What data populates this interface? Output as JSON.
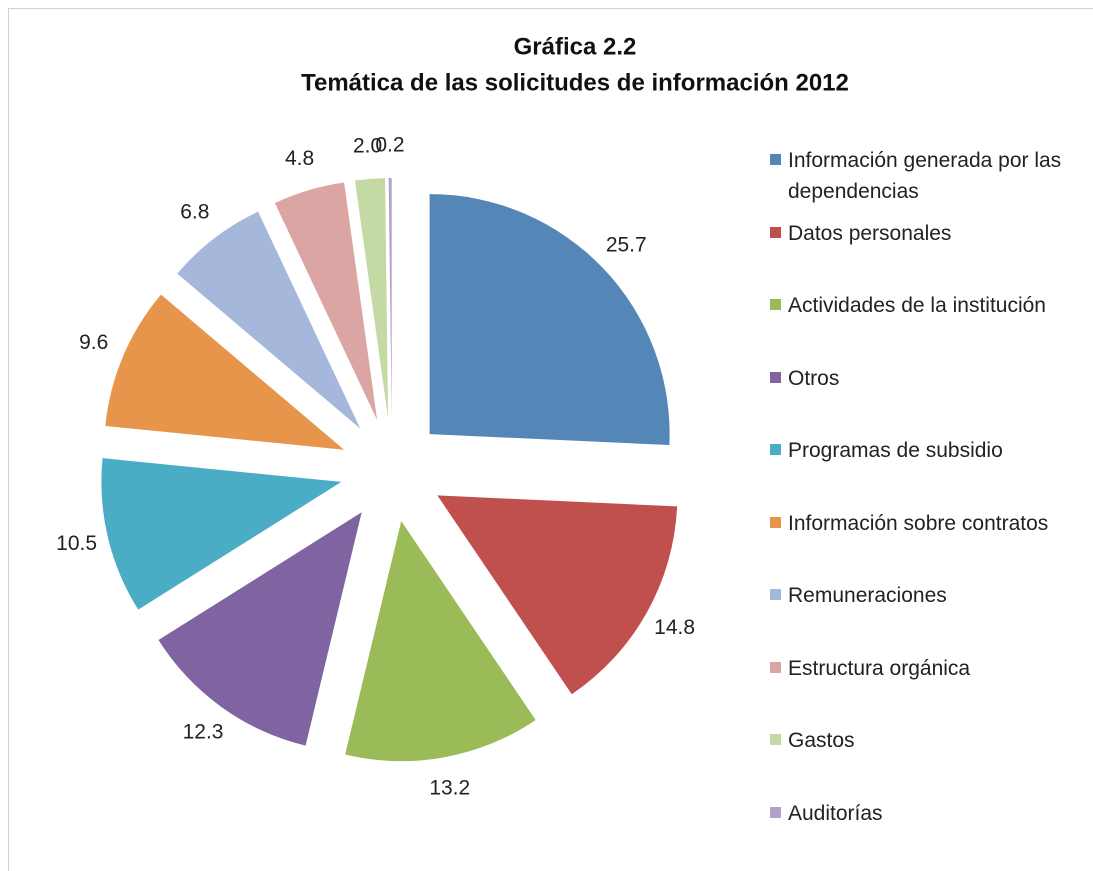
{
  "chart_data": {
    "type": "pie",
    "title": "Gráfica 2.2",
    "subtitle": "Temática de las solicitudes de información 2012",
    "categories": [
      "Información generada por las dependencias",
      "Datos personales",
      "Actividades de la institución",
      "Otros",
      "Programas de subsidio",
      "Información sobre contratos",
      "Remuneraciones",
      "Estructura orgánica",
      "Gastos",
      "Auditorías"
    ],
    "values": [
      25.7,
      14.8,
      13.2,
      12.3,
      10.5,
      9.6,
      6.8,
      4.8,
      2.0,
      0.2
    ],
    "value_labels": [
      "25.7",
      "14.8",
      "13.2",
      "12.3",
      "10.5",
      "9.6",
      "6.8",
      "4.8",
      "2.0",
      "0.2"
    ],
    "colors": [
      "#5586b8",
      "#c0504d",
      "#9bbb59",
      "#8064a2",
      "#4bacc6",
      "#e6954a",
      "#a5b8db",
      "#dba5a4",
      "#c4d9a4",
      "#b3a2c7"
    ],
    "legend": "right"
  }
}
